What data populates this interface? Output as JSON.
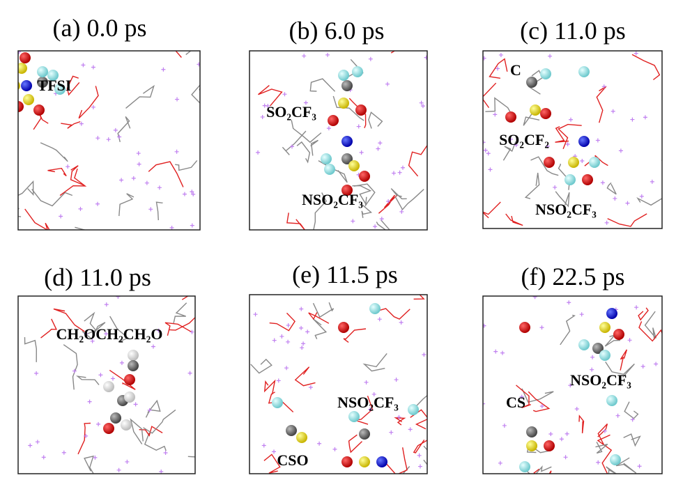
{
  "panels": [
    {
      "title": "(a) 0.0 ps",
      "labels": [
        "TFSI"
      ]
    },
    {
      "title": "(b) 6.0 ps",
      "labels": [
        "SO₂CF₃",
        "NSO₂CF₃"
      ]
    },
    {
      "title": "(c) 11.0 ps",
      "labels": [
        "C",
        "SO₂CF₂",
        "NSO₂CF₃"
      ]
    },
    {
      "title": "(d) 11.0 ps",
      "labels": [
        "CH₂OCH₂CH₂O"
      ]
    },
    {
      "title": "(e) 11.5 ps",
      "labels": [
        "NSO₂CF₃",
        "CSO"
      ]
    },
    {
      "title": "(f) 22.5 ps",
      "labels": [
        "NSO₂CF₃",
        "CS"
      ]
    }
  ]
}
